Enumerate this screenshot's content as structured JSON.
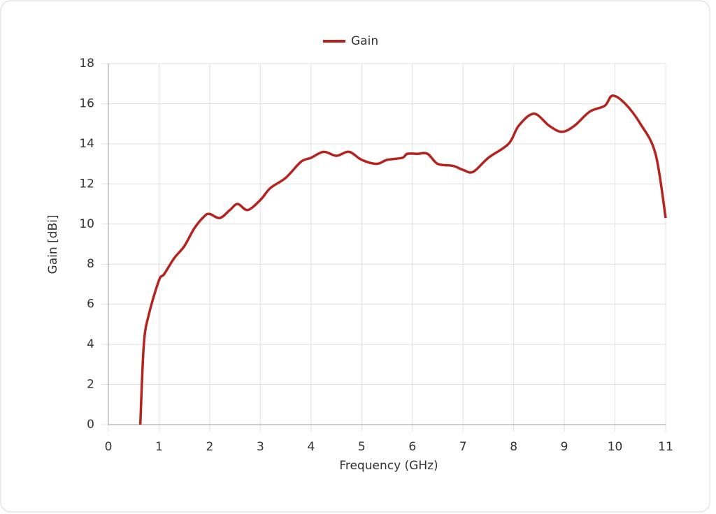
{
  "chart_data": {
    "type": "line",
    "x_label": "Frequency (GHz)",
    "y_label": "Gain [dBi]",
    "x": [
      0.63,
      0.7,
      0.8,
      1.0,
      1.1,
      1.3,
      1.5,
      1.7,
      1.9,
      2.0,
      2.2,
      2.4,
      2.55,
      2.75,
      3.0,
      3.2,
      3.5,
      3.8,
      4.0,
      4.25,
      4.5,
      4.75,
      5.0,
      5.3,
      5.5,
      5.8,
      5.9,
      6.1,
      6.3,
      6.5,
      6.8,
      7.0,
      7.2,
      7.5,
      7.9,
      8.1,
      8.4,
      8.7,
      8.95,
      9.2,
      9.5,
      9.8,
      9.95,
      10.2,
      10.5,
      10.8,
      11.0
    ],
    "series": [
      {
        "name": "Gain",
        "color": "#b5231e",
        "values": [
          0,
          4,
          5.5,
          7.2,
          7.5,
          8.3,
          8.9,
          9.8,
          10.4,
          10.5,
          10.3,
          10.7,
          11.0,
          10.7,
          11.2,
          11.8,
          12.3,
          13.1,
          13.3,
          13.6,
          13.4,
          13.6,
          13.2,
          13.0,
          13.2,
          13.3,
          13.5,
          13.5,
          13.5,
          13.0,
          12.9,
          12.7,
          12.6,
          13.3,
          14.0,
          14.9,
          15.5,
          14.9,
          14.6,
          14.9,
          15.6,
          15.9,
          16.4,
          16.0,
          15.0,
          13.5,
          10.3
        ]
      }
    ],
    "xlim": [
      0,
      11
    ],
    "xticks": [
      0,
      1,
      2,
      3,
      4,
      5,
      6,
      7,
      8,
      9,
      10,
      11
    ],
    "ylim": [
      0,
      18
    ],
    "yticks": [
      0,
      2,
      4,
      6,
      8,
      10,
      12,
      14,
      16,
      18
    ],
    "grid": true,
    "legend": "top"
  }
}
